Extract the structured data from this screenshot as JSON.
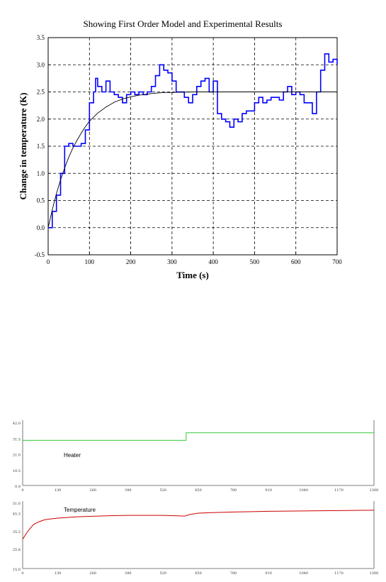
{
  "chart_data": [
    {
      "type": "line",
      "title": "Showing First Order Model and Experimental Results",
      "xlabel": "Time (s)",
      "ylabel": "Change in temperature (K)",
      "xlim": [
        0,
        700
      ],
      "ylim": [
        -0.5,
        3.5
      ],
      "xticks": [
        0,
        100,
        200,
        300,
        400,
        500,
        600,
        700
      ],
      "yticks": [
        -0.5,
        0.0,
        0.5,
        1.0,
        1.5,
        2.0,
        2.5,
        3.0,
        3.5
      ],
      "ytick_labels": [
        "-0.5",
        "0.0",
        "0.5",
        "1.0",
        "1.5",
        "2.0",
        "2.5",
        "3.0",
        "3.5"
      ],
      "xtick_labels": [
        "0",
        "100",
        "200",
        "300",
        "400",
        "500",
        "600",
        "700"
      ],
      "grid": true,
      "series": [
        {
          "role": "experimental",
          "color": "#0000ff",
          "x": [
            0,
            10,
            20,
            30,
            40,
            50,
            60,
            70,
            80,
            90,
            100,
            110,
            115,
            120,
            130,
            140,
            150,
            160,
            170,
            180,
            190,
            200,
            210,
            220,
            230,
            240,
            250,
            260,
            270,
            280,
            290,
            300,
            310,
            320,
            330,
            340,
            350,
            360,
            370,
            380,
            390,
            400,
            410,
            420,
            430,
            440,
            450,
            460,
            470,
            480,
            490,
            500,
            510,
            520,
            530,
            540,
            550,
            560,
            570,
            580,
            590,
            600,
            610,
            620,
            630,
            640,
            650,
            660,
            670,
            680,
            690,
            700
          ],
          "y": [
            0.0,
            0.3,
            0.6,
            1.0,
            1.5,
            1.55,
            1.5,
            1.5,
            1.55,
            1.8,
            2.3,
            2.5,
            2.75,
            2.6,
            2.5,
            2.7,
            2.5,
            2.45,
            2.4,
            2.3,
            2.45,
            2.5,
            2.45,
            2.5,
            2.45,
            2.5,
            2.6,
            2.8,
            3.0,
            2.9,
            2.85,
            2.7,
            2.5,
            2.5,
            2.4,
            2.3,
            2.45,
            2.6,
            2.7,
            2.75,
            2.5,
            2.7,
            2.1,
            2.0,
            1.95,
            1.85,
            2.0,
            1.95,
            2.1,
            2.15,
            2.15,
            2.3,
            2.4,
            2.3,
            2.35,
            2.4,
            2.4,
            2.35,
            2.5,
            2.6,
            2.45,
            2.5,
            2.45,
            2.3,
            2.3,
            2.1,
            2.5,
            2.9,
            3.2,
            3.05,
            3.1,
            3.0
          ]
        },
        {
          "role": "model",
          "color": "#000000",
          "x": [
            0,
            10,
            20,
            30,
            40,
            50,
            60,
            70,
            80,
            90,
            100,
            120,
            140,
            160,
            180,
            200,
            220,
            250,
            280,
            300,
            350,
            400,
            450,
            500,
            550,
            600,
            650,
            700
          ],
          "y": [
            0.0,
            0.33,
            0.63,
            0.88,
            1.1,
            1.3,
            1.47,
            1.61,
            1.74,
            1.86,
            1.96,
            2.11,
            2.22,
            2.31,
            2.37,
            2.41,
            2.44,
            2.47,
            2.49,
            2.49,
            2.5,
            2.5,
            2.5,
            2.5,
            2.5,
            2.5,
            2.5,
            2.5
          ]
        }
      ]
    },
    {
      "type": "line",
      "label": "Heater",
      "xlim": [
        0,
        1300
      ],
      "ylim": [
        0.0,
        42.0
      ],
      "xticks": [
        0,
        130,
        260,
        390,
        520,
        650,
        780,
        910,
        1040,
        1170,
        1300
      ],
      "xtick_labels": [
        "0",
        "130",
        "260",
        "390",
        "520",
        "650",
        "780",
        "910",
        "1040",
        "1170",
        "1300"
      ],
      "yticks": [
        0.0,
        10.5,
        21.0,
        31.5,
        42.0
      ],
      "ytick_labels": [
        "0.0",
        "10.5",
        "21.0",
        "31.5",
        "42.0"
      ],
      "grid": false,
      "series": [
        {
          "color": "#33cc33",
          "x": [
            0,
            605,
            605,
            1300
          ],
          "y": [
            30.0,
            30.0,
            35.0,
            35.0
          ]
        }
      ]
    },
    {
      "type": "line",
      "label": "Temperature",
      "xlim": [
        0,
        1300
      ],
      "ylim": [
        15.0,
        51.0
      ],
      "xticks": [
        0,
        130,
        260,
        390,
        520,
        650,
        780,
        910,
        1040,
        1170,
        1300
      ],
      "xtick_labels": [
        "0",
        "130",
        "260",
        "390",
        "520",
        "650",
        "780",
        "910",
        "1040",
        "1170",
        "1300"
      ],
      "yticks": [
        15.0,
        25.8,
        35.5,
        45.3,
        51.0
      ],
      "ytick_labels": [
        "15.0",
        "25.8",
        "35.5",
        "45.3",
        "51.0"
      ],
      "grid": false,
      "series": [
        {
          "color": "#cc0000",
          "x": [
            0,
            20,
            40,
            60,
            80,
            100,
            130,
            160,
            200,
            260,
            320,
            390,
            450,
            520,
            560,
            600,
            620,
            650,
            700,
            780,
            850,
            910,
            980,
            1040,
            1100,
            1170,
            1230,
            1300
          ],
          "y": [
            31.0,
            35.5,
            39.0,
            40.5,
            41.5,
            42.0,
            42.5,
            42.8,
            43.2,
            43.5,
            43.8,
            44.0,
            44.0,
            44.0,
            43.8,
            43.6,
            44.5,
            45.2,
            45.5,
            45.8,
            46.0,
            46.2,
            46.3,
            46.4,
            46.5,
            46.6,
            46.7,
            46.8
          ]
        }
      ]
    }
  ]
}
